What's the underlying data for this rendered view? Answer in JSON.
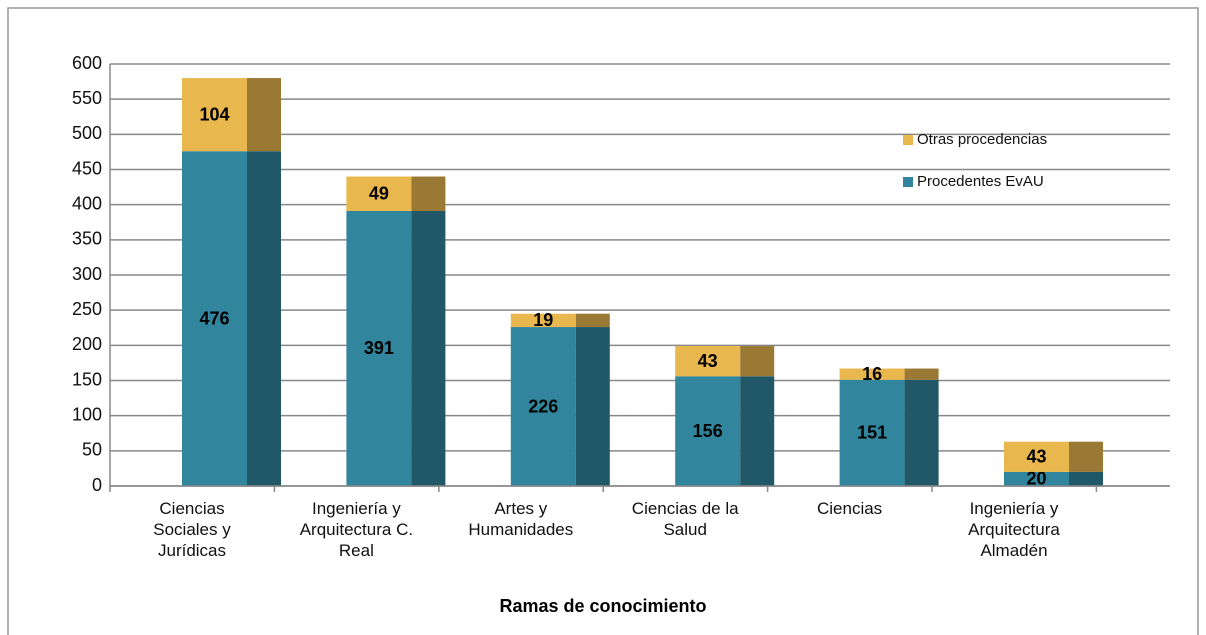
{
  "chart_data": {
    "type": "stacked_bar",
    "categories": [
      "Ciencias Sociales y Jurídicas",
      "Ingeniería y Arquitectura C. Real",
      "Artes y Humanidades",
      "Ciencias de la Salud",
      "Ciencias",
      "Ingeniería y Arquitectura Almadén"
    ],
    "series": [
      {
        "name": "Procedentes EvAU",
        "color": "#31859c",
        "values": [
          476,
          391,
          226,
          156,
          151,
          20
        ]
      },
      {
        "name": "Otras procedencias",
        "color": "#e8b84e",
        "values": [
          104,
          49,
          19,
          43,
          16,
          43
        ]
      }
    ],
    "xlabel": "Ramas de conocimiento",
    "ylim": [
      0,
      600
    ],
    "yticks": [
      0,
      50,
      100,
      150,
      200,
      250,
      300,
      350,
      400,
      450,
      500,
      550,
      600
    ],
    "grid": true,
    "legend": "right"
  }
}
